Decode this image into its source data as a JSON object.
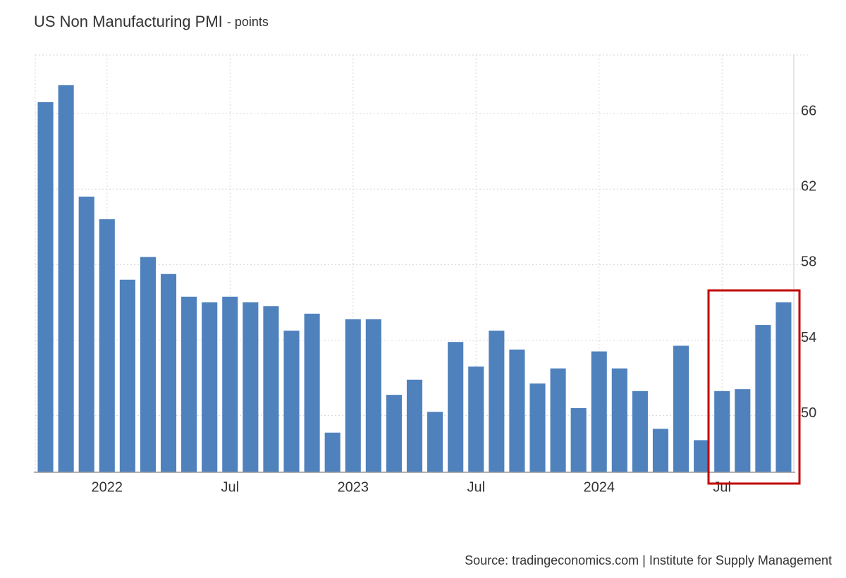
{
  "chart_data": {
    "type": "bar",
    "title": "US Non Manufacturing PMI",
    "subtitle": "- points",
    "source": "Source: tradingeconomics.com | Institute for Supply Management",
    "categories": [
      null,
      null,
      null,
      "2022",
      null,
      null,
      null,
      null,
      null,
      "Jul",
      null,
      null,
      null,
      null,
      null,
      "2023",
      null,
      null,
      null,
      null,
      null,
      "Jul",
      null,
      null,
      null,
      null,
      null,
      "2024",
      null,
      null,
      null,
      null,
      null,
      "Jul",
      null,
      null,
      null
    ],
    "values": [
      66.6,
      67.5,
      61.6,
      60.4,
      57.2,
      58.4,
      57.5,
      56.3,
      56.0,
      56.3,
      56.0,
      55.8,
      54.5,
      55.4,
      49.1,
      55.1,
      55.1,
      51.1,
      51.9,
      50.2,
      53.9,
      52.6,
      54.5,
      53.5,
      51.7,
      52.5,
      50.4,
      53.4,
      52.5,
      51.3,
      49.3,
      53.7,
      48.7,
      51.3,
      51.4,
      54.8,
      56.0
    ],
    "color": "#4f81bd",
    "ylim": [
      47,
      69.1
    ],
    "yticks": [
      50,
      54,
      58,
      62,
      66
    ],
    "grid": true
  }
}
